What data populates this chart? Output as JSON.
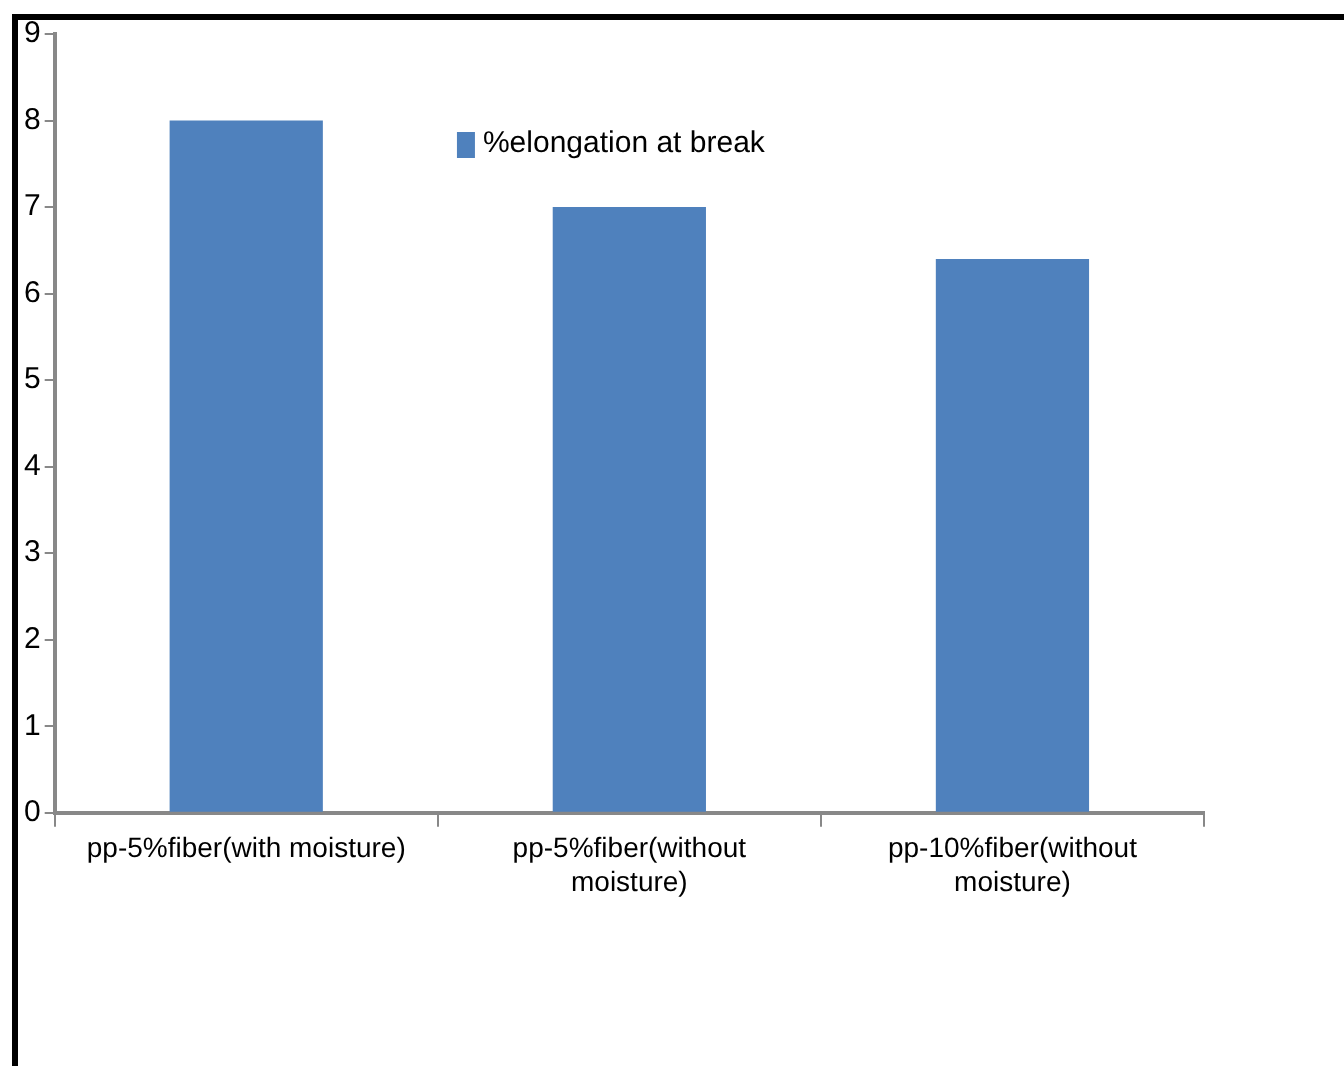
{
  "chart_data": {
    "type": "bar",
    "categories": [
      "pp-5%fiber(with moisture)",
      "pp-5%fiber(without moisture)",
      "pp-10%fiber(without moisture)"
    ],
    "series": [
      {
        "name": "%elongation at break",
        "color": "#4f81bd",
        "values": [
          8,
          7,
          6.4
        ]
      }
    ],
    "ylim": [
      0,
      9
    ],
    "yticks": [
      0,
      1,
      2,
      3,
      4,
      5,
      6,
      7,
      8,
      9
    ],
    "grid": false,
    "legend": "top"
  }
}
